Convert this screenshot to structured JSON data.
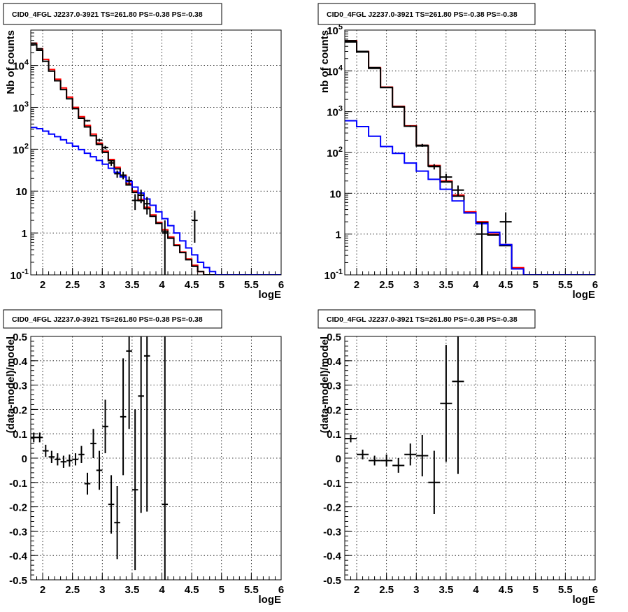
{
  "chart_data": [
    {
      "type": "histogram",
      "title": "CID0_4FGL J2237.0-3921 TS=261.80 PS=-0.38 PS=-0.38",
      "xlabel": "logE",
      "ylabel": "Nb of counts",
      "xlim": [
        1.8,
        6.0
      ],
      "ylim": [
        0.1,
        70000
      ],
      "yscale": "log",
      "grid": true,
      "x_ticks": [
        "2",
        "2.5",
        "3",
        "3.5",
        "4",
        "4.5",
        "5",
        "5.5",
        "6"
      ],
      "y_ticks": [
        "10^-1",
        "1",
        "10",
        "10^2",
        "10^3",
        "10^4"
      ],
      "bin_edges": [
        1.8,
        1.9,
        2.0,
        2.1,
        2.2,
        2.3,
        2.4,
        2.5,
        2.6,
        2.7,
        2.8,
        2.9,
        3.0,
        3.1,
        3.2,
        3.3,
        3.4,
        3.5,
        3.6,
        3.7,
        3.8,
        3.9,
        4.0,
        4.1,
        4.2,
        4.3,
        4.4,
        4.5,
        4.6,
        4.7,
        4.8,
        4.9,
        5.0,
        5.1,
        5.2,
        5.3,
        5.4,
        5.5,
        5.6,
        5.7,
        5.8,
        5.9,
        6.0
      ],
      "series": [
        {
          "color": "#ff0000",
          "style": "step",
          "values": [
            34000,
            25000,
            14000,
            8000,
            4700,
            2900,
            1750,
            1000,
            600,
            370,
            230,
            140,
            90,
            57,
            37,
            24,
            15,
            10,
            6.3,
            4.1,
            2.7,
            1.8,
            1.2,
            0.8,
            0.52,
            0.35,
            0.24,
            0.17,
            0.12,
            0.1,
            0.1,
            0.1,
            0.1,
            0.1,
            0.1,
            0.1,
            0.1,
            0.1,
            0.1,
            0.1,
            0.1,
            0.1
          ]
        },
        {
          "color": "#000000",
          "style": "step",
          "values": [
            31000,
            23000,
            12600,
            7300,
            4300,
            2650,
            1600,
            930,
            550,
            340,
            210,
            130,
            84,
            53,
            34,
            22,
            14,
            9.3,
            5.9,
            3.8,
            2.5,
            1.7,
            1.1,
            0.75,
            0.5,
            0.34,
            0.23,
            0.16,
            0.12,
            0.1,
            0.1,
            0.1,
            0.1,
            0.1,
            0.1,
            0.1,
            0.1,
            0.1,
            0.1,
            0.1,
            0.1,
            0.1
          ]
        },
        {
          "color": "#0000ff",
          "style": "step",
          "values": [
            330,
            310,
            270,
            230,
            200,
            168,
            140,
            118,
            98,
            80,
            66,
            54,
            44,
            35,
            28,
            22,
            17,
            12.5,
            9,
            6.5,
            4.6,
            3.2,
            2.2,
            1.5,
            1.0,
            0.65,
            0.44,
            0.3,
            0.2,
            0.15,
            0.12,
            0.1,
            0.1,
            0.1,
            0.1,
            0.1,
            0.1,
            0.1,
            0.1,
            0.1,
            0.1,
            0.1
          ]
        }
      ],
      "points": [
        {
          "x": 1.85,
          "y": 34000
        },
        {
          "x": 1.95,
          "y": 25000
        },
        {
          "x": 2.75,
          "y": 480
        },
        {
          "x": 2.95,
          "y": 165
        },
        {
          "x": 3.05,
          "y": 110
        },
        {
          "x": 3.15,
          "y": 47
        },
        {
          "x": 3.25,
          "y": 26
        },
        {
          "x": 3.35,
          "y": 24
        },
        {
          "x": 3.45,
          "y": 18
        },
        {
          "x": 3.55,
          "y": 6
        },
        {
          "x": 3.65,
          "y": 8
        },
        {
          "x": 3.75,
          "y": 5
        },
        {
          "x": 4.05,
          "y": 1.0
        },
        {
          "x": 4.55,
          "y": 2.0
        }
      ]
    },
    {
      "type": "histogram",
      "title": "CID0_4FGL J2237.0-3921 TS=261.80 PS=-0.38 PS=-0.38",
      "xlabel": "logE",
      "ylabel": "nb of counts",
      "xlim": [
        1.8,
        6.0
      ],
      "ylim": [
        0.1,
        100000
      ],
      "yscale": "log",
      "grid": true,
      "x_ticks": [
        "2",
        "2.5",
        "3",
        "3.5",
        "4",
        "4.5",
        "5",
        "5.5",
        "6"
      ],
      "y_ticks": [
        "10^-1",
        "1",
        "10",
        "10^2",
        "10^3",
        "10^4",
        "10^5"
      ],
      "bin_edges": [
        1.8,
        2.0,
        2.2,
        2.4,
        2.6,
        2.8,
        3.0,
        3.2,
        3.4,
        3.6,
        3.8,
        4.0,
        4.2,
        4.4,
        4.6,
        4.8,
        5.0,
        5.2,
        5.4,
        5.6,
        5.8,
        6.0
      ],
      "series": [
        {
          "color": "#ff0000",
          "style": "step",
          "values": [
            55000,
            30000,
            12000,
            4000,
            1350,
            450,
            150,
            48,
            20,
            9,
            3.5,
            2,
            1,
            0.55,
            0.15,
            0.1,
            0.1,
            0.1,
            0.1,
            0.1,
            0.1
          ]
        },
        {
          "color": "#000000",
          "style": "step",
          "values": [
            51000,
            29000,
            11500,
            3900,
            1300,
            440,
            145,
            46,
            19,
            8.5,
            3.3,
            1.9,
            0.95,
            0.52,
            0.14,
            0.1,
            0.1,
            0.1,
            0.1,
            0.1,
            0.1
          ]
        },
        {
          "color": "#0000ff",
          "style": "step",
          "values": [
            600,
            430,
            250,
            140,
            95,
            55,
            35,
            22,
            12.5,
            6.5,
            3.3,
            1.8,
            1.1,
            0.55,
            0.14,
            0.1,
            0.1,
            0.1,
            0.1,
            0.1,
            0.1
          ]
        }
      ],
      "points": [
        {
          "x": 1.9,
          "y": 55000
        },
        {
          "x": 2.1,
          "y": 30000
        },
        {
          "x": 2.3,
          "y": 12000
        },
        {
          "x": 2.5,
          "y": 3950
        },
        {
          "x": 2.7,
          "y": 1320
        },
        {
          "x": 2.9,
          "y": 440
        },
        {
          "x": 3.1,
          "y": 150
        },
        {
          "x": 3.3,
          "y": 45
        },
        {
          "x": 3.5,
          "y": 25
        },
        {
          "x": 3.7,
          "y": 12
        },
        {
          "x": 4.1,
          "y": 1.0
        },
        {
          "x": 4.5,
          "y": 2.0
        }
      ]
    },
    {
      "type": "errorbar",
      "title": "CID0_4FGL J2237.0-3921 TS=261.80 PS=-0.38 PS=-0.38",
      "xlabel": "logE",
      "ylabel": "(data-model)/model",
      "xlim": [
        1.8,
        6.0
      ],
      "ylim": [
        -0.5,
        0.5
      ],
      "yscale": "linear",
      "grid": true,
      "x_ticks": [
        "2",
        "2.5",
        "3",
        "3.5",
        "4",
        "4.5",
        "5",
        "5.5",
        "6"
      ],
      "y_ticks": [
        "-0.5",
        "-0.4",
        "-0.3",
        "-0.2",
        "-0.1",
        "0",
        "0.1",
        "0.2",
        "0.3",
        "0.4",
        "0.5"
      ],
      "half_width": 0.05,
      "points": [
        {
          "x": 1.85,
          "y": 0.085,
          "err": 0.02
        },
        {
          "x": 1.95,
          "y": 0.085,
          "err": 0.02
        },
        {
          "x": 2.05,
          "y": 0.03,
          "err": 0.025
        },
        {
          "x": 2.15,
          "y": 0.005,
          "err": 0.025
        },
        {
          "x": 2.25,
          "y": -0.005,
          "err": 0.025
        },
        {
          "x": 2.35,
          "y": -0.015,
          "err": 0.025
        },
        {
          "x": 2.45,
          "y": -0.01,
          "err": 0.025
        },
        {
          "x": 2.55,
          "y": -0.005,
          "err": 0.025
        },
        {
          "x": 2.65,
          "y": 0.015,
          "err": 0.035
        },
        {
          "x": 2.75,
          "y": -0.105,
          "err": 0.045
        },
        {
          "x": 2.85,
          "y": 0.06,
          "err": 0.06
        },
        {
          "x": 2.95,
          "y": -0.05,
          "err": 0.08
        },
        {
          "x": 3.05,
          "y": 0.13,
          "err": 0.11
        },
        {
          "x": 3.15,
          "y": -0.19,
          "err": 0.12
        },
        {
          "x": 3.25,
          "y": -0.265,
          "err": 0.15
        },
        {
          "x": 3.35,
          "y": 0.17,
          "err": 0.24
        },
        {
          "x": 3.45,
          "y": 0.44,
          "err": 0.32
        },
        {
          "x": 3.55,
          "y": -0.13,
          "err": 0.33
        },
        {
          "x": 3.65,
          "y": 0.255,
          "err": 0.48
        },
        {
          "x": 3.75,
          "y": 0.42,
          "err": 0.64
        },
        {
          "x": 4.05,
          "y": -0.19,
          "err": 1.5
        }
      ]
    },
    {
      "type": "errorbar",
      "title": "CID0_4FGL J2237.0-3921 TS=261.80 PS=-0.38 PS=-0.38",
      "xlabel": "logE",
      "ylabel": "(data-model)/model",
      "xlim": [
        1.8,
        6.0
      ],
      "ylim": [
        -0.5,
        0.5
      ],
      "yscale": "linear",
      "grid": true,
      "x_ticks": [
        "2",
        "2.5",
        "3",
        "3.5",
        "4",
        "4.5",
        "5",
        "5.5",
        "6"
      ],
      "y_ticks": [
        "-0.5",
        "-0.4",
        "-0.3",
        "-0.2",
        "-0.1",
        "0",
        "0.1",
        "0.2",
        "0.3",
        "0.4",
        "0.5"
      ],
      "half_width": 0.1,
      "points": [
        {
          "x": 1.9,
          "y": 0.08,
          "err": 0.015
        },
        {
          "x": 2.1,
          "y": 0.015,
          "err": 0.02
        },
        {
          "x": 2.3,
          "y": -0.01,
          "err": 0.02
        },
        {
          "x": 2.5,
          "y": -0.01,
          "err": 0.025
        },
        {
          "x": 2.7,
          "y": -0.03,
          "err": 0.03
        },
        {
          "x": 2.9,
          "y": 0.015,
          "err": 0.045
        },
        {
          "x": 3.1,
          "y": 0.01,
          "err": 0.085
        },
        {
          "x": 3.3,
          "y": -0.1,
          "err": 0.13
        },
        {
          "x": 3.5,
          "y": 0.225,
          "err": 0.24
        },
        {
          "x": 3.7,
          "y": 0.315,
          "err": 0.38
        }
      ]
    }
  ]
}
